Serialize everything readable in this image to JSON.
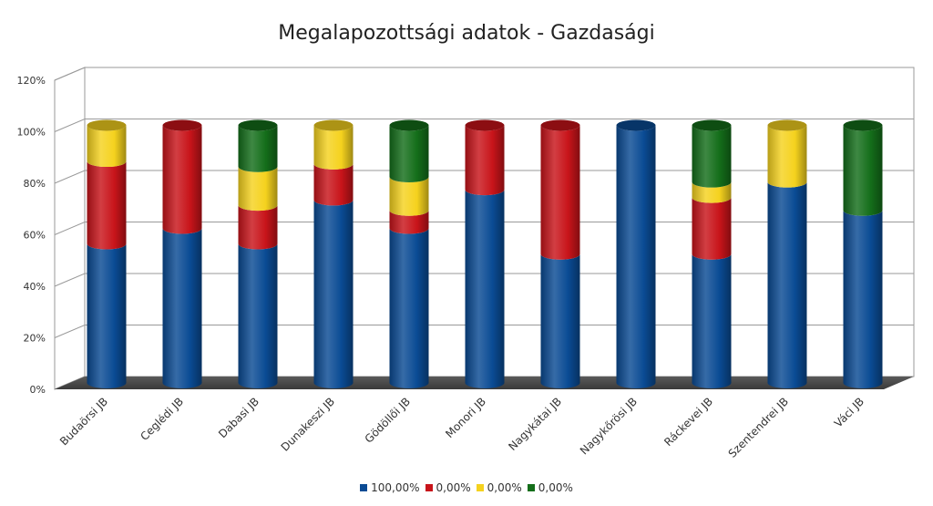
{
  "chart_data": {
    "type": "bar",
    "stacked": true,
    "style": "3d-cylinder",
    "title": "Megalapozottsági adatok - Gazdasági",
    "categories": [
      "Budaörsi JB",
      "Ceglédi JB",
      "Dabasi JB",
      "Dunakeszi JB",
      "Gödöllői JB",
      "Monori JB",
      "Nagykátai JB",
      "Nagykőrösi JB",
      "Ráckevei JB",
      "Szentendrei JB",
      "Váci JB"
    ],
    "series": [
      {
        "name": "100,00%",
        "color": "#0a4b94",
        "values": [
          54,
          60,
          54,
          71,
          60,
          75,
          50,
          100,
          50,
          78,
          67
        ]
      },
      {
        "name": "0,00%",
        "color": "#c8141a",
        "values": [
          32,
          40,
          15,
          14,
          7,
          25,
          50,
          0,
          22,
          0,
          0
        ]
      },
      {
        "name": "0,00%",
        "color": "#f5d21e",
        "values": [
          14,
          0,
          15,
          15,
          13,
          0,
          0,
          0,
          6,
          22,
          0
        ]
      },
      {
        "name": "0,00%",
        "color": "#146e1a",
        "values": [
          0,
          0,
          16,
          0,
          20,
          0,
          0,
          0,
          22,
          0,
          33
        ]
      }
    ],
    "yticks": [
      "0%",
      "20%",
      "40%",
      "60%",
      "80%",
      "100%",
      "120%"
    ],
    "ylim": [
      0,
      120
    ],
    "grid": true,
    "legend": "bottom"
  }
}
